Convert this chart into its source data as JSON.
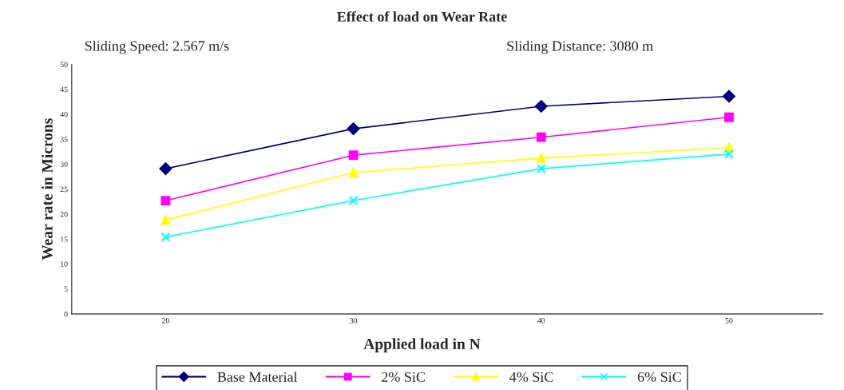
{
  "chart_data": {
    "type": "line",
    "title": "Effect of load on Wear Rate",
    "annotations": [
      "Sliding Speed: 2.567 m/s",
      "Sliding Distance: 3080 m"
    ],
    "xlabel": "Applied load in N",
    "ylabel": "Wear rate in Microns",
    "categories": [
      "20",
      "30",
      "40",
      "50"
    ],
    "series": [
      {
        "name": "Base Material",
        "color": "#000080",
        "marker": "diamond",
        "values": [
          29.1,
          37.1,
          41.6,
          43.6
        ]
      },
      {
        "name": "2% SiC",
        "color": "#ff00ff",
        "marker": "square",
        "values": [
          22.7,
          31.8,
          35.4,
          39.4
        ]
      },
      {
        "name": "4% SiC",
        "color": "#ffff00",
        "marker": "triangle",
        "values": [
          18.8,
          28.3,
          31.2,
          33.3
        ]
      },
      {
        "name": "6% SiC",
        "color": "#00ffff",
        "marker": "cross",
        "values": [
          15.4,
          22.7,
          29.1,
          32.0
        ]
      }
    ],
    "ylim": [
      0,
      50
    ],
    "yticks": [
      0,
      5,
      10,
      15,
      20,
      25,
      30,
      35,
      40,
      45,
      50
    ],
    "grid": false,
    "legend": "bottom",
    "line_style": "solid"
  }
}
